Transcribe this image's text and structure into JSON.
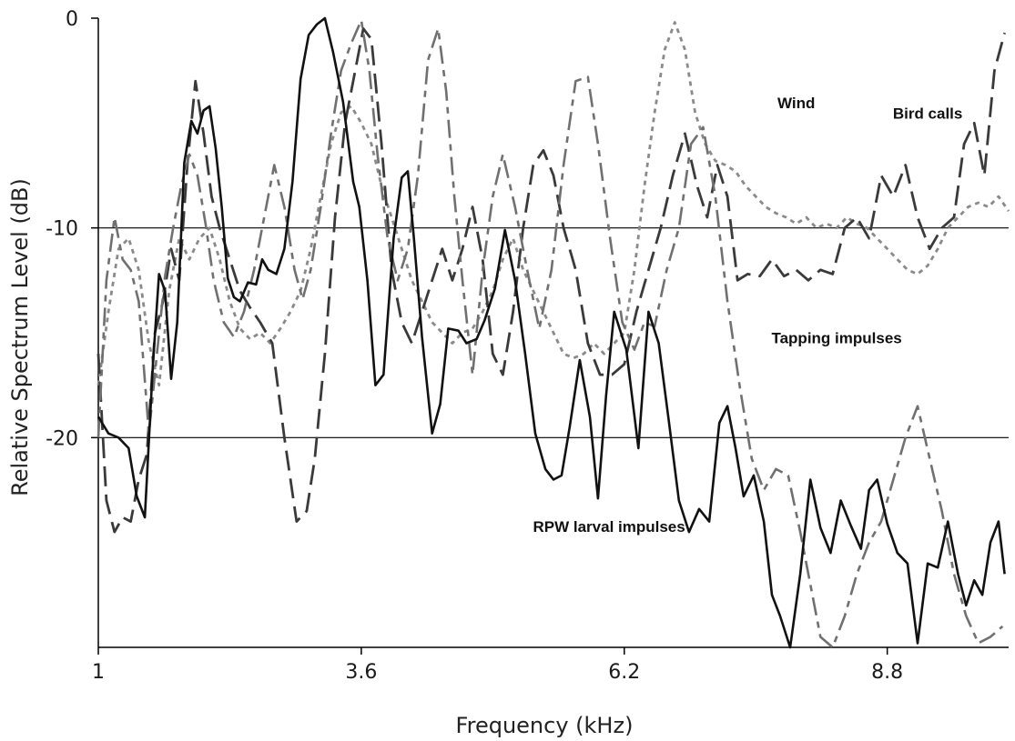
{
  "chart_data": {
    "type": "line",
    "title": "",
    "xlabel": "Frequency (kHz)",
    "ylabel": "Relative Spectrum Level (dB)",
    "xlim": [
      1,
      10.0
    ],
    "ylim": [
      -30,
      0
    ],
    "x_ticks": [
      {
        "value": 1,
        "label": "1"
      },
      {
        "value": 3.6,
        "label": "3.6"
      },
      {
        "value": 6.2,
        "label": "6.2"
      },
      {
        "value": 8.8,
        "label": "8.8"
      }
    ],
    "y_ticks": [
      {
        "value": 0,
        "label": "0"
      },
      {
        "value": -10,
        "label": "-10"
      },
      {
        "value": -20,
        "label": "-20"
      }
    ],
    "gridlines_y": [
      -10,
      -20
    ],
    "legend": "none",
    "series": [
      {
        "name": "RPW larval impulses",
        "color": "#111111",
        "dash": "solid",
        "label_at": [
          6.05,
          -24.5
        ],
        "x": [
          1.0,
          1.1,
          1.2,
          1.3,
          1.38,
          1.46,
          1.54,
          1.6,
          1.66,
          1.72,
          1.78,
          1.85,
          1.92,
          1.98,
          2.04,
          2.1,
          2.16,
          2.22,
          2.28,
          2.34,
          2.4,
          2.48,
          2.56,
          2.62,
          2.68,
          2.76,
          2.84,
          2.92,
          3.0,
          3.08,
          3.16,
          3.24,
          3.32,
          3.42,
          3.52,
          3.58,
          3.66,
          3.74,
          3.82,
          3.92,
          4.0,
          4.06,
          4.12,
          4.2,
          4.3,
          4.38,
          4.46,
          4.56,
          4.64,
          4.74,
          4.82,
          4.92,
          5.02,
          5.12,
          5.22,
          5.32,
          5.42,
          5.5,
          5.58,
          5.66,
          5.76,
          5.86,
          5.94,
          6.02,
          6.1,
          6.22,
          6.34,
          6.44,
          6.54,
          6.64,
          6.74,
          6.84,
          6.94,
          7.04,
          7.14,
          7.22,
          7.3,
          7.38,
          7.48,
          7.58,
          7.66,
          7.74,
          7.84,
          7.94,
          8.04,
          8.14,
          8.24,
          8.34,
          8.44,
          8.54,
          8.62,
          8.7,
          8.8,
          8.9,
          9.0,
          9.1,
          9.2,
          9.3,
          9.4,
          9.5,
          9.58,
          9.66,
          9.74,
          9.82,
          9.9,
          9.96
        ],
        "y": [
          -19.0,
          -19.8,
          -20.0,
          -20.5,
          -22.8,
          -23.8,
          -16.5,
          -12.2,
          -13.0,
          -17.2,
          -14.5,
          -6.9,
          -4.9,
          -5.5,
          -4.4,
          -4.2,
          -6.2,
          -9.0,
          -12.4,
          -13.3,
          -13.5,
          -12.6,
          -12.7,
          -11.5,
          -12.0,
          -12.2,
          -11.0,
          -7.8,
          -2.9,
          -0.8,
          -0.3,
          0.0,
          -1.6,
          -4.0,
          -7.8,
          -9.0,
          -12.5,
          -17.5,
          -17.0,
          -10.5,
          -7.6,
          -7.3,
          -10.5,
          -15.2,
          -19.8,
          -18.4,
          -14.8,
          -14.9,
          -15.5,
          -15.3,
          -14.4,
          -12.9,
          -10.1,
          -12.5,
          -16.0,
          -19.8,
          -21.5,
          -22.0,
          -21.8,
          -19.5,
          -16.3,
          -19.0,
          -22.9,
          -18.0,
          -14.0,
          -15.8,
          -20.5,
          -14.0,
          -15.5,
          -19.2,
          -23.0,
          -24.5,
          -23.4,
          -24.0,
          -19.3,
          -18.5,
          -20.5,
          -22.8,
          -21.8,
          -24.0,
          -27.5,
          -28.5,
          -30.0,
          -26.5,
          -22.0,
          -24.3,
          -25.5,
          -23.0,
          -24.2,
          -25.3,
          -22.5,
          -22.0,
          -24.1,
          -25.5,
          -26.0,
          -29.8,
          -26.0,
          -26.2,
          -24.0,
          -26.5,
          -28.0,
          -26.8,
          -27.5,
          -25.0,
          -24.0,
          -26.5
        ]
      },
      {
        "name": "Tapping impulses",
        "color": "#707070",
        "dash": "long-short",
        "label_at": [
          8.3,
          -15.5
        ],
        "x": [
          1.0,
          1.08,
          1.16,
          1.24,
          1.32,
          1.4,
          1.5,
          1.58,
          1.66,
          1.74,
          1.82,
          1.9,
          1.98,
          2.06,
          2.14,
          2.24,
          2.34,
          2.44,
          2.54,
          2.64,
          2.74,
          2.84,
          2.94,
          3.02,
          3.1,
          3.2,
          3.3,
          3.4,
          3.5,
          3.6,
          3.68,
          3.76,
          3.86,
          3.96,
          4.06,
          4.16,
          4.26,
          4.36,
          4.44,
          4.52,
          4.6,
          4.7,
          4.8,
          4.9,
          5.0,
          5.12,
          5.24,
          5.36,
          5.48,
          5.6,
          5.72,
          5.84,
          5.94,
          6.06,
          6.18,
          6.3,
          6.4,
          6.5,
          6.62,
          6.74,
          6.86,
          6.98,
          7.1,
          7.22,
          7.34,
          7.46,
          7.58,
          7.7,
          7.82,
          7.94,
          8.04,
          8.14,
          8.26,
          8.38,
          8.5,
          8.62,
          8.74,
          8.86,
          8.98,
          9.1,
          9.22,
          9.34,
          9.46,
          9.58,
          9.7,
          9.82,
          9.94
        ],
        "y": [
          -20.0,
          -12.5,
          -9.5,
          -11.5,
          -12.0,
          -13.5,
          -19.8,
          -16.0,
          -12.3,
          -10.0,
          -8.0,
          -6.5,
          -7.5,
          -9.8,
          -12.5,
          -14.5,
          -15.2,
          -14.0,
          -12.0,
          -9.5,
          -7.0,
          -9.0,
          -12.0,
          -13.4,
          -12.0,
          -9.0,
          -5.5,
          -2.5,
          -1.2,
          -0.1,
          -2.5,
          -6.5,
          -10.5,
          -12.5,
          -11.0,
          -7.5,
          -2.0,
          -0.5,
          -3.5,
          -8.5,
          -12.5,
          -17.0,
          -12.0,
          -8.5,
          -6.5,
          -9.0,
          -12.0,
          -14.8,
          -12.0,
          -7.0,
          -3.0,
          -2.8,
          -6.0,
          -10.5,
          -14.5,
          -15.8,
          -14.5,
          -14.7,
          -12.0,
          -10.0,
          -6.0,
          -5.2,
          -8.5,
          -13.5,
          -17.5,
          -21.0,
          -22.5,
          -21.5,
          -21.8,
          -24.5,
          -27.0,
          -29.5,
          -30.0,
          -28.5,
          -26.5,
          -25.0,
          -24.0,
          -22.0,
          -20.0,
          -18.5,
          -21.0,
          -23.5,
          -26.5,
          -28.5,
          -29.8,
          -29.5,
          -29.0
        ]
      },
      {
        "name": "Bird calls",
        "color": "#3a3a3a",
        "dash": "long",
        "label_at": [
          9.2,
          -4.8
        ],
        "x": [
          1.0,
          1.08,
          1.16,
          1.24,
          1.32,
          1.4,
          1.48,
          1.56,
          1.64,
          1.72,
          1.8,
          1.88,
          1.96,
          2.04,
          2.12,
          2.2,
          2.3,
          2.4,
          2.5,
          2.6,
          2.72,
          2.84,
          2.96,
          3.06,
          3.14,
          3.24,
          3.34,
          3.44,
          3.54,
          3.62,
          3.7,
          3.8,
          3.9,
          4.0,
          4.1,
          4.2,
          4.3,
          4.4,
          4.5,
          4.6,
          4.7,
          4.8,
          4.9,
          5.0,
          5.1,
          5.2,
          5.3,
          5.4,
          5.5,
          5.6,
          5.72,
          5.84,
          5.96,
          6.08,
          6.2,
          6.32,
          6.44,
          6.56,
          6.68,
          6.8,
          6.92,
          7.02,
          7.12,
          7.22,
          7.32,
          7.42,
          7.54,
          7.66,
          7.78,
          7.9,
          8.02,
          8.14,
          8.26,
          8.38,
          8.5,
          8.62,
          8.74,
          8.86,
          8.98,
          9.1,
          9.22,
          9.34,
          9.46,
          9.56,
          9.66,
          9.76,
          9.86,
          9.96
        ],
        "y": [
          -16.0,
          -23.0,
          -24.5,
          -23.8,
          -24.0,
          -22.0,
          -20.8,
          -15.0,
          -13.5,
          -11.0,
          -12.5,
          -7.0,
          -3.0,
          -5.5,
          -8.5,
          -10.0,
          -11.5,
          -13.0,
          -13.8,
          -14.5,
          -15.5,
          -20.0,
          -24.0,
          -23.5,
          -21.0,
          -16.0,
          -9.5,
          -5.0,
          -2.5,
          -0.5,
          -1.0,
          -6.0,
          -12.0,
          -14.5,
          -15.5,
          -14.0,
          -12.5,
          -11.0,
          -12.5,
          -11.0,
          -9.0,
          -11.5,
          -16.0,
          -17.0,
          -14.0,
          -10.0,
          -7.0,
          -6.3,
          -7.5,
          -10.0,
          -12.0,
          -15.5,
          -17.0,
          -17.0,
          -16.5,
          -14.0,
          -12.0,
          -10.0,
          -7.5,
          -5.5,
          -8.0,
          -9.5,
          -7.0,
          -8.5,
          -12.5,
          -12.2,
          -12.3,
          -11.5,
          -12.3,
          -12.0,
          -12.5,
          -12.0,
          -12.2,
          -10.0,
          -9.5,
          -10.5,
          -7.5,
          -8.5,
          -7.0,
          -9.5,
          -11.0,
          -10.0,
          -9.5,
          -6.0,
          -5.0,
          -7.5,
          -2.5,
          -0.7
        ]
      },
      {
        "name": "Wind",
        "color": "#8a8a8a",
        "dash": "dotted",
        "label_at": [
          7.9,
          -4.3
        ],
        "x": [
          1.0,
          1.1,
          1.2,
          1.3,
          1.4,
          1.5,
          1.6,
          1.7,
          1.8,
          1.9,
          2.0,
          2.1,
          2.2,
          2.3,
          2.4,
          2.5,
          2.6,
          2.7,
          2.8,
          2.9,
          3.0,
          3.1,
          3.2,
          3.3,
          3.4,
          3.5,
          3.6,
          3.7,
          3.8,
          3.9,
          4.0,
          4.1,
          4.2,
          4.3,
          4.4,
          4.5,
          4.6,
          4.7,
          4.8,
          4.9,
          5.0,
          5.1,
          5.2,
          5.3,
          5.4,
          5.5,
          5.6,
          5.7,
          5.8,
          5.9,
          6.0,
          6.1,
          6.2,
          6.3,
          6.4,
          6.5,
          6.6,
          6.7,
          6.8,
          6.9,
          7.0,
          7.1,
          7.2,
          7.3,
          7.4,
          7.5,
          7.6,
          7.7,
          7.8,
          7.9,
          8.0,
          8.1,
          8.2,
          8.3,
          8.4,
          8.5,
          8.6,
          8.7,
          8.8,
          8.9,
          9.0,
          9.1,
          9.2,
          9.3,
          9.4,
          9.5,
          9.6,
          9.7,
          9.8,
          9.9,
          10.0
        ],
        "y": [
          -17.5,
          -14.0,
          -11.0,
          -10.5,
          -12.0,
          -15.5,
          -17.5,
          -13.0,
          -10.5,
          -11.5,
          -10.5,
          -10.0,
          -11.5,
          -13.5,
          -14.8,
          -15.3,
          -15.0,
          -15.5,
          -14.8,
          -14.0,
          -13.0,
          -11.0,
          -8.5,
          -6.0,
          -4.5,
          -4.2,
          -5.0,
          -6.0,
          -8.0,
          -9.5,
          -11.0,
          -12.5,
          -13.5,
          -14.5,
          -15.0,
          -15.5,
          -15.0,
          -14.8,
          -14.0,
          -13.0,
          -11.5,
          -10.5,
          -12.0,
          -13.0,
          -14.0,
          -15.0,
          -16.0,
          -16.2,
          -16.0,
          -15.5,
          -16.0,
          -15.5,
          -15.0,
          -12.0,
          -8.0,
          -4.5,
          -1.5,
          -0.2,
          -1.5,
          -4.5,
          -6.0,
          -6.8,
          -7.0,
          -7.3,
          -8.0,
          -8.5,
          -9.0,
          -9.3,
          -9.5,
          -9.8,
          -9.5,
          -10.0,
          -9.8,
          -10.0,
          -9.5,
          -9.8,
          -10.0,
          -10.5,
          -11.0,
          -11.5,
          -12.0,
          -12.2,
          -11.8,
          -11.0,
          -10.0,
          -9.5,
          -9.0,
          -8.8,
          -9.0,
          -8.5,
          -9.2
        ]
      }
    ]
  }
}
